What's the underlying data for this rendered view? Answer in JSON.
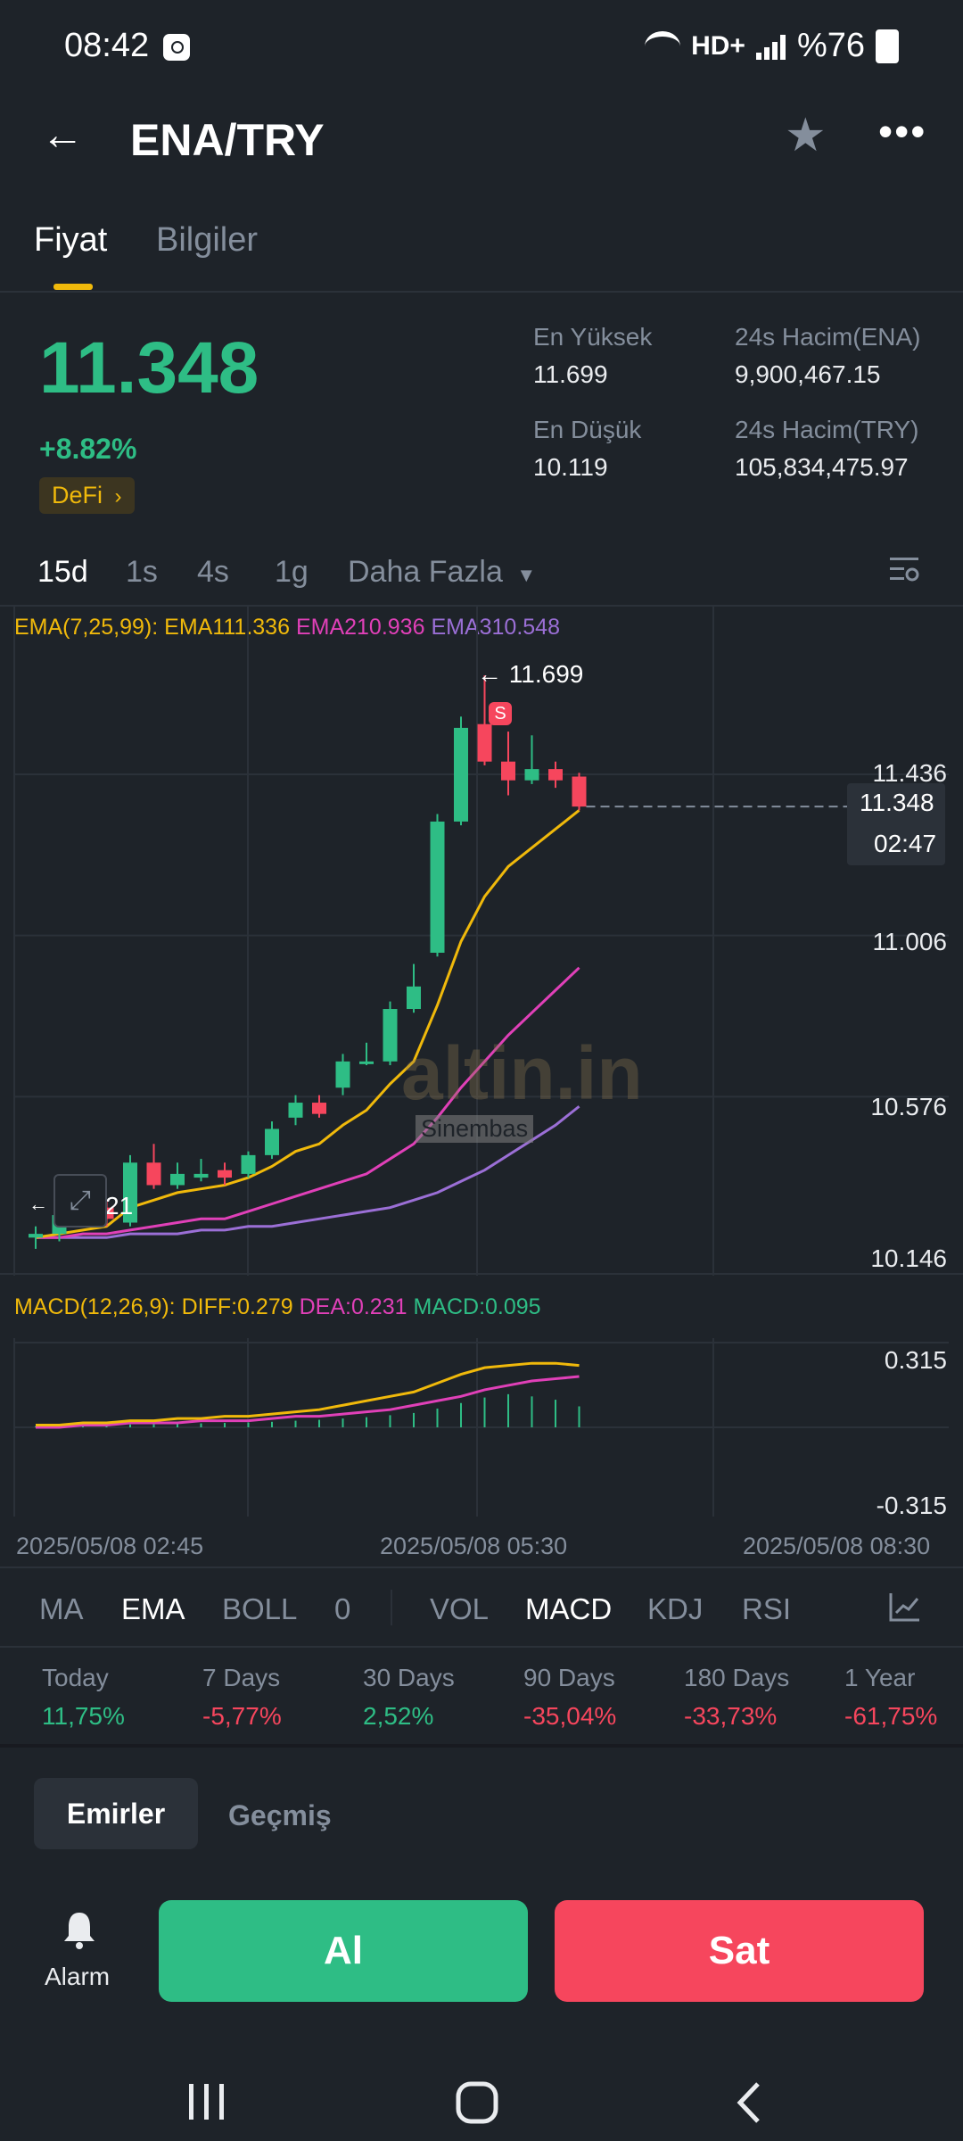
{
  "status": {
    "time": "08:42",
    "battery": "%76",
    "network": "HD+"
  },
  "header": {
    "pair": "ENA/TRY"
  },
  "tabs": [
    "Fiyat",
    "Bilgiler"
  ],
  "price": {
    "last": "11.348",
    "change": "+8.82%",
    "tag": "DeFi",
    "stats": [
      {
        "label": "En Yüksek",
        "value": "11.699"
      },
      {
        "label": "24s Hacim(ENA)",
        "value": "9,900,467.15"
      },
      {
        "label": "En Düşük",
        "value": "10.119"
      },
      {
        "label": "24s Hacim(TRY)",
        "value": "105,834,475.97"
      }
    ]
  },
  "intervals": [
    "15d",
    "1s",
    "4s",
    "1g",
    "Daha Fazla"
  ],
  "chart": {
    "ema_prefix": "EMA(7,25,99):",
    "ema1": "EMA111.336",
    "ema2": "EMA210.936",
    "ema3": "EMA310.548",
    "y_labels": [
      "11.436",
      "11.006",
      "10.576",
      "10.146"
    ],
    "high_label": "← 11.699",
    "low_label": "21",
    "current_price": "11.348",
    "countdown": "02:47",
    "sell_marker": "S",
    "watermark": "altin.in",
    "watermark_sub": "Sinembas",
    "macd_prefix": "MACD(12,26,9):",
    "macd_diff": "DIFF:0.279",
    "macd_dea": "DEA:0.231",
    "macd_val": "MACD:0.095",
    "macd_y": [
      "0.315",
      "-0.315"
    ],
    "times": [
      "2025/05/08 02:45",
      "2025/05/08 05:30",
      "2025/05/08 08:30"
    ],
    "colors": {
      "up": "#2ebd85",
      "down": "#f6465d",
      "ema1": "#f0b90b",
      "ema2": "#e040b8",
      "ema3": "#9b6fd6"
    }
  },
  "chart_data": [
    {
      "type": "candlestick",
      "title": "ENA/TRY 15d",
      "ylim": [
        10.146,
        11.699
      ],
      "y_ticks": [
        10.146,
        10.576,
        11.006,
        11.436
      ],
      "x_ticks": [
        "2025/05/08 02:45",
        "2025/05/08 05:30",
        "2025/05/08 08:30"
      ],
      "candles": [
        {
          "o": 10.2,
          "c": 10.21,
          "h": 10.23,
          "l": 10.17
        },
        {
          "o": 10.21,
          "c": 10.26,
          "h": 10.28,
          "l": 10.19
        },
        {
          "o": 10.26,
          "c": 10.27,
          "h": 10.29,
          "l": 10.24
        },
        {
          "o": 10.28,
          "c": 10.25,
          "h": 10.3,
          "l": 10.23
        },
        {
          "o": 10.24,
          "c": 10.4,
          "h": 10.42,
          "l": 10.23
        },
        {
          "o": 10.4,
          "c": 10.34,
          "h": 10.45,
          "l": 10.33
        },
        {
          "o": 10.34,
          "c": 10.37,
          "h": 10.4,
          "l": 10.33
        },
        {
          "o": 10.36,
          "c": 10.37,
          "h": 10.41,
          "l": 10.35
        },
        {
          "o": 10.38,
          "c": 10.36,
          "h": 10.4,
          "l": 10.34
        },
        {
          "o": 10.37,
          "c": 10.42,
          "h": 10.43,
          "l": 10.36
        },
        {
          "o": 10.42,
          "c": 10.49,
          "h": 10.51,
          "l": 10.41
        },
        {
          "o": 10.52,
          "c": 10.56,
          "h": 10.58,
          "l": 10.5
        },
        {
          "o": 10.56,
          "c": 10.53,
          "h": 10.58,
          "l": 10.52
        },
        {
          "o": 10.6,
          "c": 10.67,
          "h": 10.69,
          "l": 10.58
        },
        {
          "o": 10.67,
          "c": 10.67,
          "h": 10.72,
          "l": 10.66
        },
        {
          "o": 10.67,
          "c": 10.81,
          "h": 10.83,
          "l": 10.66
        },
        {
          "o": 10.81,
          "c": 10.87,
          "h": 10.93,
          "l": 10.8
        },
        {
          "o": 10.96,
          "c": 11.31,
          "h": 11.33,
          "l": 10.95
        },
        {
          "o": 11.31,
          "c": 11.56,
          "h": 11.59,
          "l": 11.3
        },
        {
          "o": 11.57,
          "c": 11.47,
          "h": 11.7,
          "l": 11.46
        },
        {
          "o": 11.47,
          "c": 11.42,
          "h": 11.55,
          "l": 11.38
        },
        {
          "o": 11.42,
          "c": 11.45,
          "h": 11.54,
          "l": 11.41
        },
        {
          "o": 11.45,
          "c": 11.42,
          "h": 11.47,
          "l": 11.4
        },
        {
          "o": 11.43,
          "c": 11.35,
          "h": 11.44,
          "l": 11.34
        }
      ],
      "ema1": [
        10.2,
        10.21,
        10.22,
        10.23,
        10.28,
        10.3,
        10.32,
        10.33,
        10.34,
        10.36,
        10.39,
        10.43,
        10.45,
        10.5,
        10.54,
        10.61,
        10.67,
        10.82,
        10.99,
        11.11,
        11.19,
        11.24,
        11.29,
        11.34
      ],
      "ema2": [
        10.2,
        10.2,
        10.21,
        10.21,
        10.22,
        10.23,
        10.24,
        10.25,
        10.25,
        10.27,
        10.29,
        10.31,
        10.33,
        10.35,
        10.37,
        10.41,
        10.45,
        10.52,
        10.6,
        10.67,
        10.74,
        10.8,
        10.86,
        10.92
      ],
      "ema3": [
        10.2,
        10.2,
        10.2,
        10.2,
        10.21,
        10.21,
        10.21,
        10.22,
        10.22,
        10.23,
        10.23,
        10.24,
        10.25,
        10.26,
        10.27,
        10.28,
        10.3,
        10.32,
        10.35,
        10.38,
        10.42,
        10.46,
        10.5,
        10.55
      ]
    },
    {
      "type": "bar",
      "title": "MACD(12,26,9)",
      "ylim": [
        -0.315,
        0.315
      ],
      "macd": [
        0.005,
        0.007,
        0.009,
        0.01,
        0.013,
        0.014,
        0.016,
        0.018,
        0.02,
        0.022,
        0.025,
        0.03,
        0.034,
        0.04,
        0.046,
        0.055,
        0.065,
        0.085,
        0.11,
        0.135,
        0.15,
        0.14,
        0.125,
        0.095
      ],
      "diff": [
        0.01,
        0.01,
        0.02,
        0.02,
        0.03,
        0.03,
        0.04,
        0.04,
        0.05,
        0.05,
        0.06,
        0.07,
        0.08,
        0.1,
        0.12,
        0.14,
        0.16,
        0.2,
        0.24,
        0.27,
        0.28,
        0.29,
        0.29,
        0.28
      ],
      "dea": [
        0.0,
        0.0,
        0.01,
        0.01,
        0.02,
        0.02,
        0.02,
        0.03,
        0.03,
        0.03,
        0.04,
        0.05,
        0.05,
        0.06,
        0.07,
        0.08,
        0.1,
        0.12,
        0.14,
        0.17,
        0.19,
        0.21,
        0.22,
        0.23
      ]
    }
  ],
  "indicators_main": [
    "MA",
    "EMA",
    "BOLL",
    "0"
  ],
  "indicators_sub": [
    "VOL",
    "MACD",
    "KDJ",
    "RSI"
  ],
  "performance": [
    {
      "label": "Today",
      "value": "11,75%",
      "sign": "pos"
    },
    {
      "label": "7 Days",
      "value": "-5,77%",
      "sign": "neg"
    },
    {
      "label": "30 Days",
      "value": "2,52%",
      "sign": "pos"
    },
    {
      "label": "90 Days",
      "value": "-35,04%",
      "sign": "neg"
    },
    {
      "label": "180 Days",
      "value": "-33,73%",
      "sign": "neg"
    },
    {
      "label": "1 Year",
      "value": "-61,75%",
      "sign": "neg"
    }
  ],
  "orders": {
    "tab_orders": "Emirler",
    "tab_history": "Geçmiş"
  },
  "actions": {
    "alarm": "Alarm",
    "buy": "Al",
    "sell": "Sat"
  }
}
